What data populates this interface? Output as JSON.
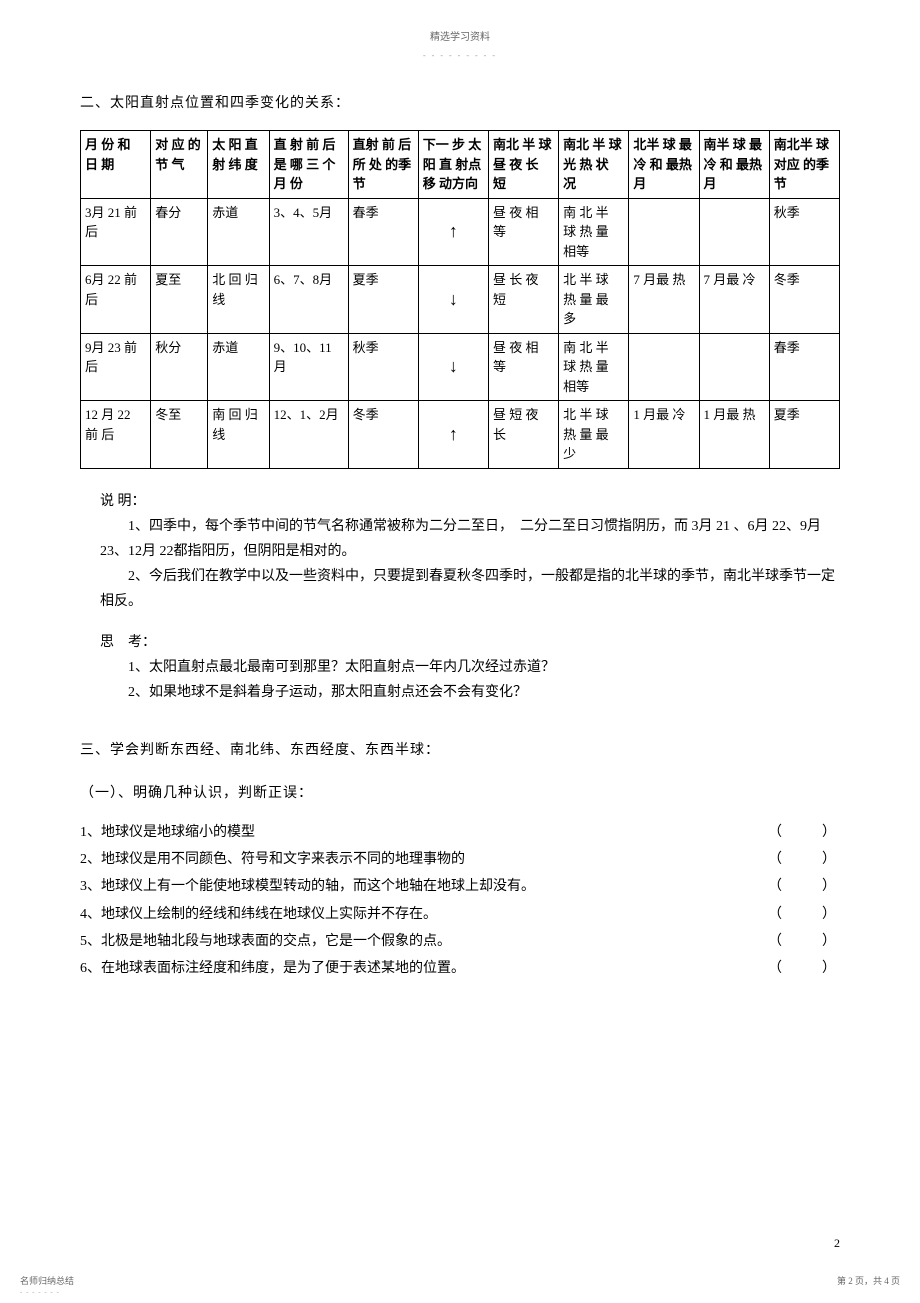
{
  "header": {
    "small_text": "精选学习资料",
    "dots": "- - - - - - - - -"
  },
  "section2": {
    "title": "二、太阳直射点位置和四季变化的关系：",
    "table": {
      "headers": [
        "月 份 和 日 期",
        "对 应 的 节 气",
        "太 阳 直 射 纬 度",
        "直 射 前 后 是 哪 三 个 月 份",
        "直射 前 后所 处 的季节",
        "下一 步 太阳 直 射点 移 动方向",
        "南北 半 球昼 夜 长 短",
        "南北 半 球光 热 状 况",
        "北半 球 最冷 和 最热月",
        "南半 球 最冷 和 最热月",
        "南北半 球对应 的季节"
      ],
      "rows": [
        {
          "cells": [
            "3月 21 前后",
            "春分",
            "赤道",
            "3、4、5月",
            "春季",
            "↑",
            "昼 夜 相 等",
            "南 北 半 球 热 量 相等",
            "",
            "",
            "秋季"
          ]
        },
        {
          "cells": [
            "6月 22 前后",
            "夏至",
            "北 回 归线",
            "6、7、8月",
            "夏季",
            "↓",
            "昼 长 夜 短",
            "北 半 球 热 量 最 多",
            "7 月最 热",
            "7 月最 冷",
            "冬季"
          ]
        },
        {
          "cells": [
            "9月 23 前后",
            "秋分",
            "赤道",
            "9、10、11月",
            "秋季",
            "↓",
            "昼 夜 相 等",
            "南 北 半 球 热 量 相等",
            "",
            "",
            "春季"
          ]
        },
        {
          "cells": [
            "12 月 22 前 后",
            "冬至",
            "南 回 归线",
            "12、1、2月",
            "冬季",
            "↑",
            "昼 短 夜 长",
            "北 半 球 热 量 最 少",
            "1 月最 冷",
            "1 月最 热",
            "夏季"
          ]
        }
      ]
    },
    "note_label": "说 明：",
    "note1": "1、四季中，每个季节中间的节气名称通常被称为二分二至日，　二分二至日习惯指阴历，而 3月 21 、6月 22、9月 23、12月 22都指阳历，但阴阳是相对的。",
    "note2": "2、今后我们在教学中以及一些资料中，只要提到春夏秋冬四季时，一般都是指的北半球的季节，南北半球季节一定相反。",
    "think_label": "思　考：",
    "think1": "1、太阳直射点最北最南可到那里？太阳直射点一年内几次经过赤道？",
    "think2": "2、如果地球不是斜着身子运动，那太阳直射点还会不会有变化？"
  },
  "section3": {
    "title": "三、学会判断东西经、南北纬、东西经度、东西半球：",
    "subtitle": "（一）、明确几种认识，判断正误：",
    "items": [
      "1、地球仪是地球缩小的模型",
      "2、地球仪是用不同颜色、符号和文字来表示不同的地理事物的",
      "3、地球仪上有一个能使地球模型转动的轴，而这个地轴在地球上却没有。",
      "4、地球仪上绘制的经线和纬线在地球仪上实际并不存在。",
      "5、北极是地轴北段与地球表面的交点，它是一个假象的点。",
      "6、在地球表面标注经度和纬度，是为了便于表述某地的位置。"
    ],
    "paren": "（　　）"
  },
  "footer": {
    "page_num": "2",
    "left": "名师归纳总结",
    "right": "第 2 页，共 4 页",
    "dots": "- - - - - - -"
  }
}
